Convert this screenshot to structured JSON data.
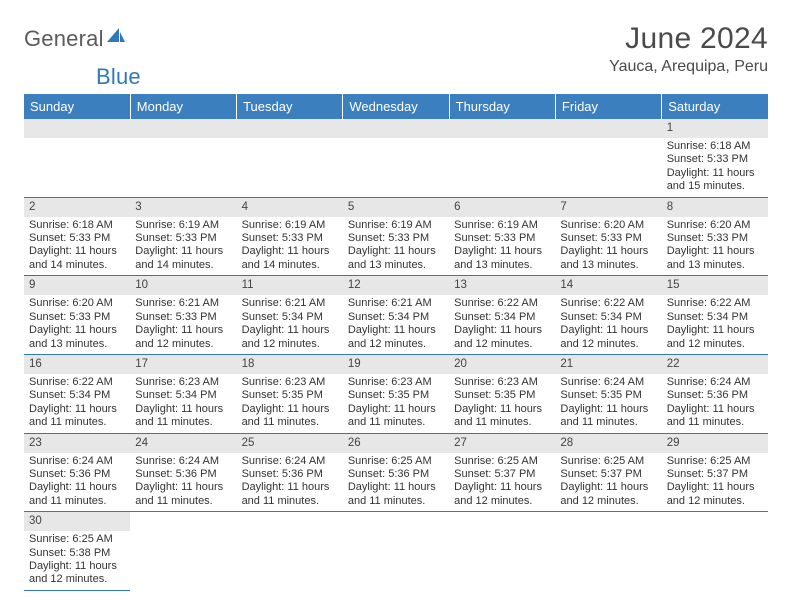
{
  "logo": {
    "text1": "General",
    "text2": "Blue"
  },
  "title": "June 2024",
  "location": "Yauca, Arequipa, Peru",
  "colors": {
    "header_bg": "#3b7fbf",
    "header_text": "#ffffff",
    "daynum_bg": "#e7e7e7",
    "border": "#2f79b9",
    "logo_gray": "#5b5b5b",
    "logo_blue": "#2f79b9",
    "text": "#333333"
  },
  "days_of_week": [
    "Sunday",
    "Monday",
    "Tuesday",
    "Wednesday",
    "Thursday",
    "Friday",
    "Saturday"
  ],
  "weeks": [
    [
      null,
      null,
      null,
      null,
      null,
      null,
      {
        "n": "1",
        "sr": "Sunrise: 6:18 AM",
        "ss": "Sunset: 5:33 PM",
        "dl": "Daylight: 11 hours and 15 minutes."
      }
    ],
    [
      {
        "n": "2",
        "sr": "Sunrise: 6:18 AM",
        "ss": "Sunset: 5:33 PM",
        "dl": "Daylight: 11 hours and 14 minutes."
      },
      {
        "n": "3",
        "sr": "Sunrise: 6:19 AM",
        "ss": "Sunset: 5:33 PM",
        "dl": "Daylight: 11 hours and 14 minutes."
      },
      {
        "n": "4",
        "sr": "Sunrise: 6:19 AM",
        "ss": "Sunset: 5:33 PM",
        "dl": "Daylight: 11 hours and 14 minutes."
      },
      {
        "n": "5",
        "sr": "Sunrise: 6:19 AM",
        "ss": "Sunset: 5:33 PM",
        "dl": "Daylight: 11 hours and 13 minutes."
      },
      {
        "n": "6",
        "sr": "Sunrise: 6:19 AM",
        "ss": "Sunset: 5:33 PM",
        "dl": "Daylight: 11 hours and 13 minutes."
      },
      {
        "n": "7",
        "sr": "Sunrise: 6:20 AM",
        "ss": "Sunset: 5:33 PM",
        "dl": "Daylight: 11 hours and 13 minutes."
      },
      {
        "n": "8",
        "sr": "Sunrise: 6:20 AM",
        "ss": "Sunset: 5:33 PM",
        "dl": "Daylight: 11 hours and 13 minutes."
      }
    ],
    [
      {
        "n": "9",
        "sr": "Sunrise: 6:20 AM",
        "ss": "Sunset: 5:33 PM",
        "dl": "Daylight: 11 hours and 13 minutes."
      },
      {
        "n": "10",
        "sr": "Sunrise: 6:21 AM",
        "ss": "Sunset: 5:33 PM",
        "dl": "Daylight: 11 hours and 12 minutes."
      },
      {
        "n": "11",
        "sr": "Sunrise: 6:21 AM",
        "ss": "Sunset: 5:34 PM",
        "dl": "Daylight: 11 hours and 12 minutes."
      },
      {
        "n": "12",
        "sr": "Sunrise: 6:21 AM",
        "ss": "Sunset: 5:34 PM",
        "dl": "Daylight: 11 hours and 12 minutes."
      },
      {
        "n": "13",
        "sr": "Sunrise: 6:22 AM",
        "ss": "Sunset: 5:34 PM",
        "dl": "Daylight: 11 hours and 12 minutes."
      },
      {
        "n": "14",
        "sr": "Sunrise: 6:22 AM",
        "ss": "Sunset: 5:34 PM",
        "dl": "Daylight: 11 hours and 12 minutes."
      },
      {
        "n": "15",
        "sr": "Sunrise: 6:22 AM",
        "ss": "Sunset: 5:34 PM",
        "dl": "Daylight: 11 hours and 12 minutes."
      }
    ],
    [
      {
        "n": "16",
        "sr": "Sunrise: 6:22 AM",
        "ss": "Sunset: 5:34 PM",
        "dl": "Daylight: 11 hours and 11 minutes."
      },
      {
        "n": "17",
        "sr": "Sunrise: 6:23 AM",
        "ss": "Sunset: 5:34 PM",
        "dl": "Daylight: 11 hours and 11 minutes."
      },
      {
        "n": "18",
        "sr": "Sunrise: 6:23 AM",
        "ss": "Sunset: 5:35 PM",
        "dl": "Daylight: 11 hours and 11 minutes."
      },
      {
        "n": "19",
        "sr": "Sunrise: 6:23 AM",
        "ss": "Sunset: 5:35 PM",
        "dl": "Daylight: 11 hours and 11 minutes."
      },
      {
        "n": "20",
        "sr": "Sunrise: 6:23 AM",
        "ss": "Sunset: 5:35 PM",
        "dl": "Daylight: 11 hours and 11 minutes."
      },
      {
        "n": "21",
        "sr": "Sunrise: 6:24 AM",
        "ss": "Sunset: 5:35 PM",
        "dl": "Daylight: 11 hours and 11 minutes."
      },
      {
        "n": "22",
        "sr": "Sunrise: 6:24 AM",
        "ss": "Sunset: 5:36 PM",
        "dl": "Daylight: 11 hours and 11 minutes."
      }
    ],
    [
      {
        "n": "23",
        "sr": "Sunrise: 6:24 AM",
        "ss": "Sunset: 5:36 PM",
        "dl": "Daylight: 11 hours and 11 minutes."
      },
      {
        "n": "24",
        "sr": "Sunrise: 6:24 AM",
        "ss": "Sunset: 5:36 PM",
        "dl": "Daylight: 11 hours and 11 minutes."
      },
      {
        "n": "25",
        "sr": "Sunrise: 6:24 AM",
        "ss": "Sunset: 5:36 PM",
        "dl": "Daylight: 11 hours and 11 minutes."
      },
      {
        "n": "26",
        "sr": "Sunrise: 6:25 AM",
        "ss": "Sunset: 5:36 PM",
        "dl": "Daylight: 11 hours and 11 minutes."
      },
      {
        "n": "27",
        "sr": "Sunrise: 6:25 AM",
        "ss": "Sunset: 5:37 PM",
        "dl": "Daylight: 11 hours and 12 minutes."
      },
      {
        "n": "28",
        "sr": "Sunrise: 6:25 AM",
        "ss": "Sunset: 5:37 PM",
        "dl": "Daylight: 11 hours and 12 minutes."
      },
      {
        "n": "29",
        "sr": "Sunrise: 6:25 AM",
        "ss": "Sunset: 5:37 PM",
        "dl": "Daylight: 11 hours and 12 minutes."
      }
    ],
    [
      {
        "n": "30",
        "sr": "Sunrise: 6:25 AM",
        "ss": "Sunset: 5:38 PM",
        "dl": "Daylight: 11 hours and 12 minutes."
      },
      null,
      null,
      null,
      null,
      null,
      null
    ]
  ]
}
